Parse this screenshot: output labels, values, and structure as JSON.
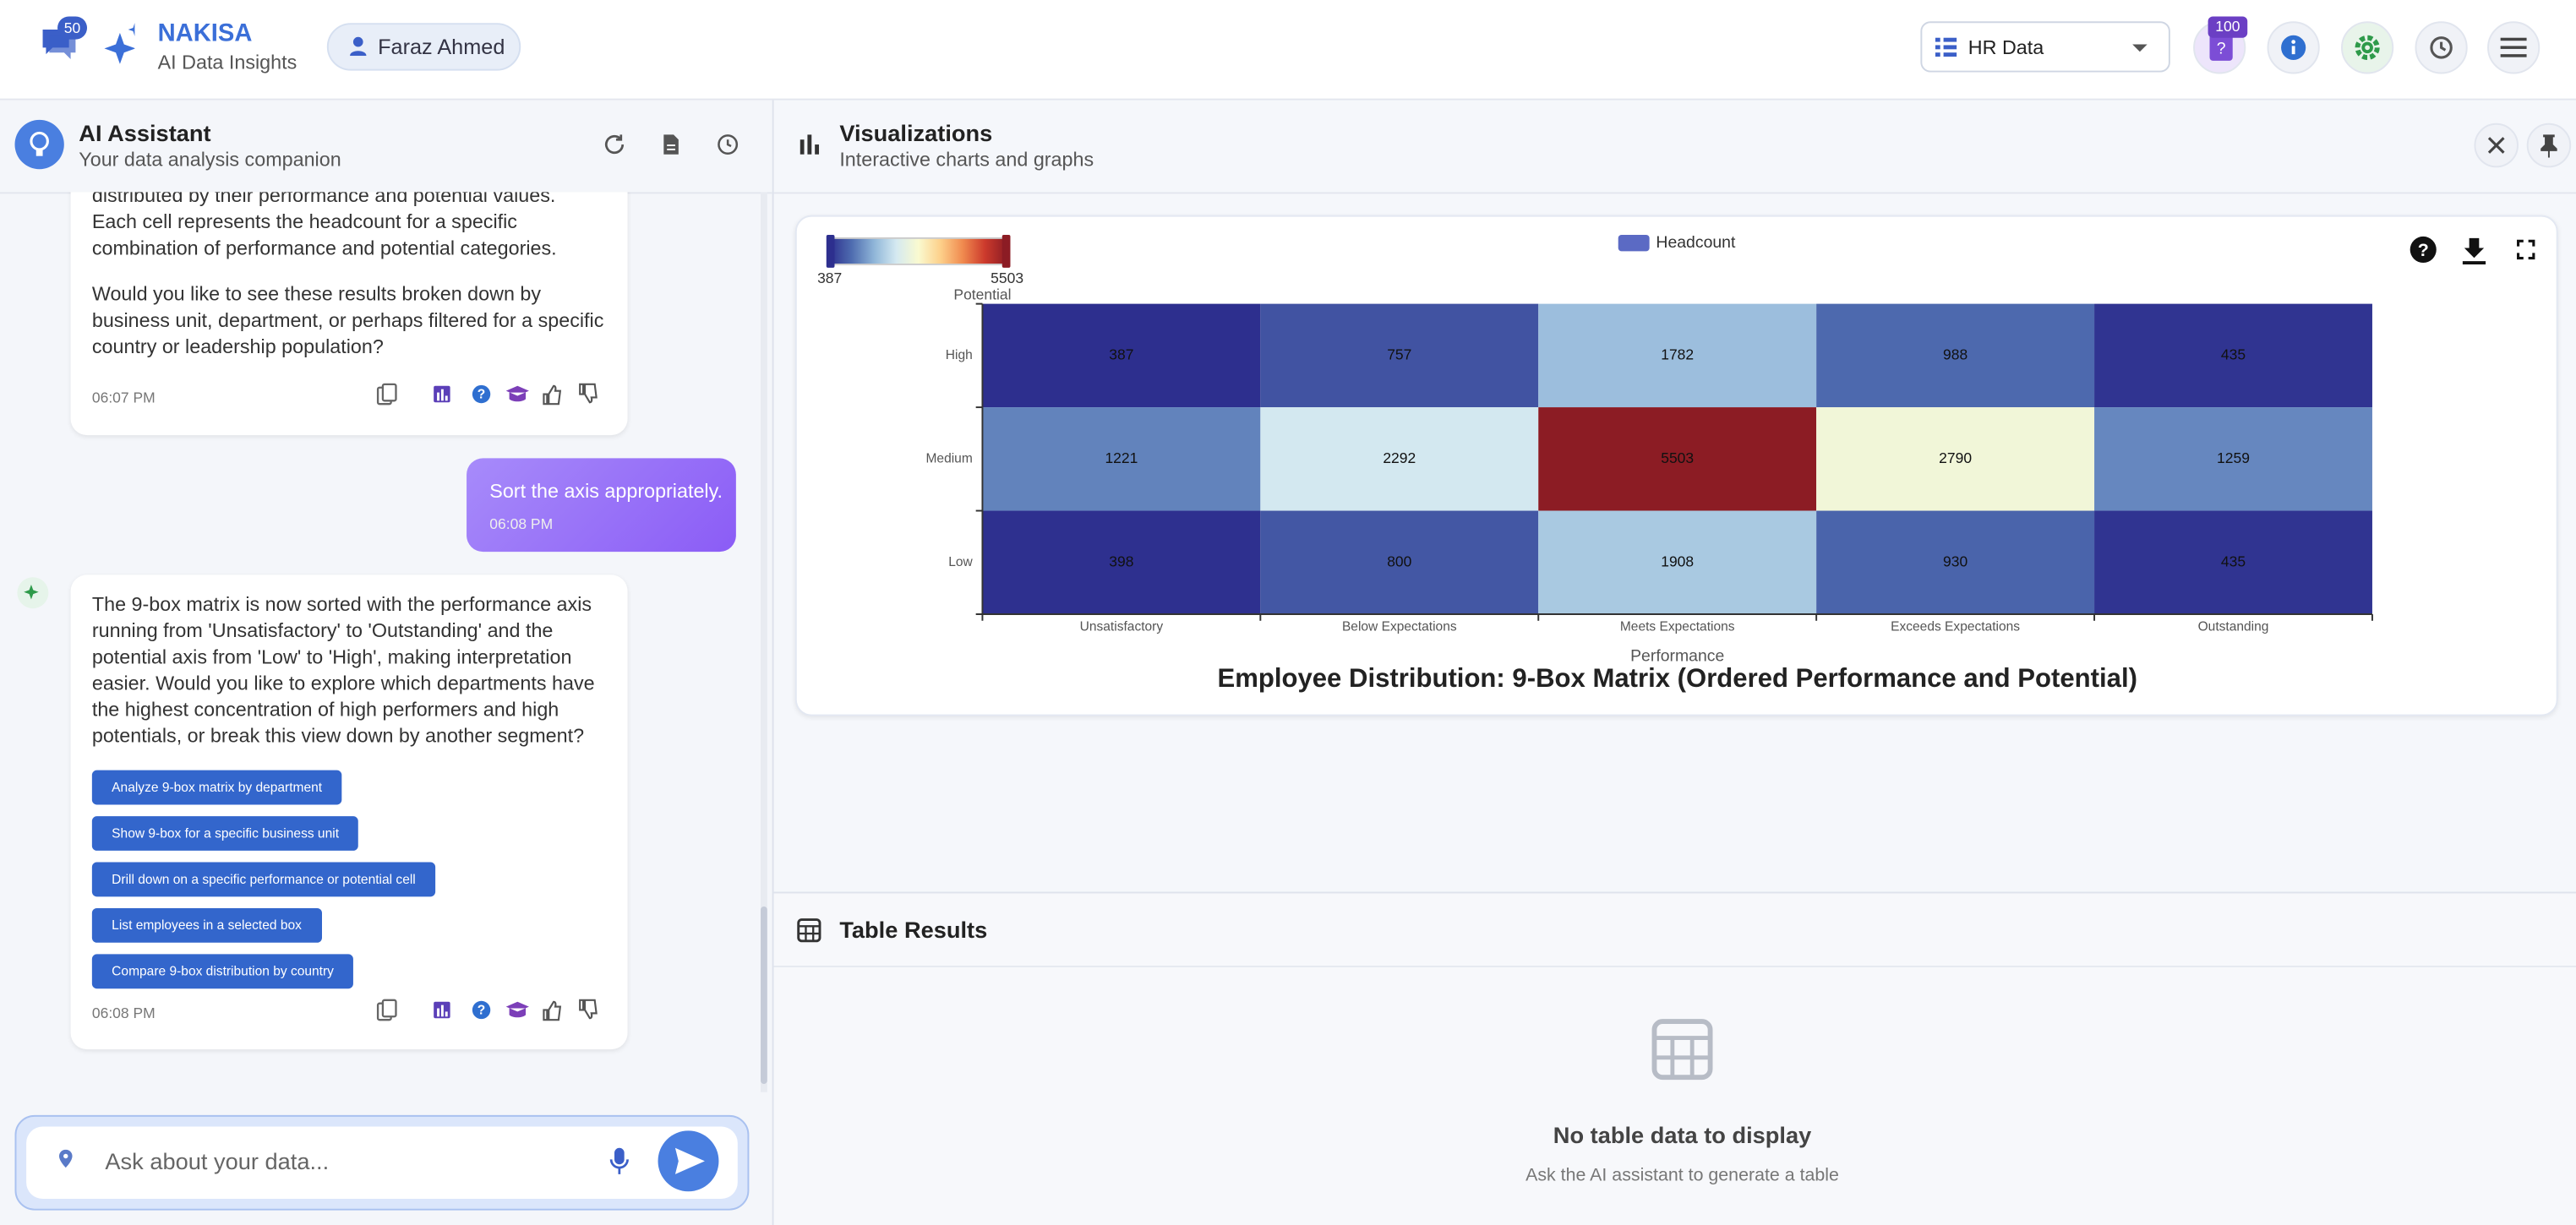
{
  "header": {
    "notification_count": 50,
    "brand": "NAKISA",
    "tagline": "AI Data Insights",
    "user": "Faraz Ahmed",
    "dataset": "HR Data",
    "credit_count": 100
  },
  "assistant": {
    "title": "AI Assistant",
    "subtitle": "Your data analysis companion",
    "messages": [
      {
        "paragraphs": [
          "distributed by their performance and potential values. Each cell represents the headcount for a specific combination of performance and potential categories.",
          "Would you like to see these results broken down by business unit, department, or perhaps filtered for a specific country or leadership population?"
        ],
        "time": "06:07 PM"
      },
      {
        "text": "Sort the axis appropriately.",
        "time": "06:08 PM"
      },
      {
        "paragraphs": [
          "The 9-box matrix is now sorted with the performance axis running from 'Unsatisfactory' to 'Outstanding' and the potential axis from 'Low' to 'High', making interpretation easier. Would you like to explore which departments have the highest concentration of high performers and high potentials, or break this view down by another segment?"
        ],
        "suggestions": [
          "Analyze 9-box matrix by department",
          "Show 9-box for a specific business unit",
          "Drill down on a specific performance or potential cell",
          "List employees in a selected box",
          "Compare 9-box distribution by country"
        ],
        "time": "06:08 PM"
      }
    ],
    "input_placeholder": "Ask about your data..."
  },
  "visualization": {
    "title": "Visualizations",
    "subtitle": "Interactive charts and graphs",
    "chart": {
      "type": "heatmap",
      "title": "Employee Distribution: 9-Box Matrix (Ordered Performance and Potential)",
      "x_label": "Performance",
      "y_label": "Potential",
      "legend": "Headcount",
      "legend_color": "#5b6ac4",
      "x_categories": [
        "Unsatisfactory",
        "Below Expectations",
        "Meets Expectations",
        "Exceeds Expectations",
        "Outstanding"
      ],
      "y_categories": [
        "High",
        "Medium",
        "Low"
      ],
      "values": [
        [
          387,
          757,
          1782,
          988,
          435
        ],
        [
          1221,
          2292,
          5503,
          2790,
          1259
        ],
        [
          398,
          800,
          1908,
          930,
          435
        ]
      ],
      "zlim": [
        387,
        5503
      ],
      "colorscale": [
        "#2d2f8e",
        "#4f6db0",
        "#8fb5d8",
        "#d4e9f1",
        "#fafad0",
        "#fdd08a",
        "#f08a4f",
        "#cc3a2c",
        "#8c1c24"
      ]
    }
  },
  "table": {
    "title": "Table Results",
    "empty_title": "No table data to display",
    "empty_subtitle": "Ask the AI assistant to generate a table"
  }
}
